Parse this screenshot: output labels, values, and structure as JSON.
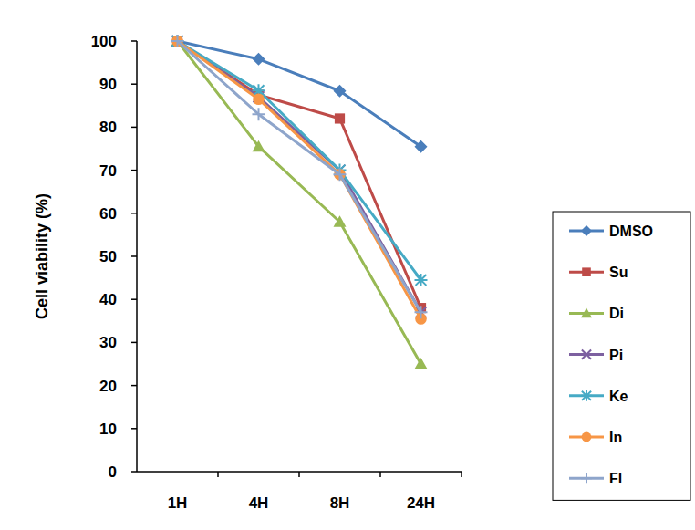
{
  "chart_data": {
    "type": "line",
    "y_label": "Cell viability (%)",
    "categories": [
      "1H",
      "4H",
      "8H",
      "24H"
    ],
    "ylim": [
      0,
      100
    ],
    "yticks": [
      0,
      10,
      20,
      30,
      40,
      50,
      60,
      70,
      80,
      90,
      100
    ],
    "grid": false,
    "legend": "right",
    "series": [
      {
        "name": "DMSO",
        "color": "#4a7ebb",
        "marker": "diamond",
        "values": [
          100,
          95.8,
          88.4,
          75.5
        ]
      },
      {
        "name": "Su",
        "color": "#be4b48",
        "marker": "square",
        "values": [
          100,
          87.5,
          82,
          38
        ]
      },
      {
        "name": "Di",
        "color": "#98b954",
        "marker": "triangle",
        "values": [
          100,
          75.5,
          58,
          25
        ]
      },
      {
        "name": "Pi",
        "color": "#7d60a0",
        "marker": "x",
        "values": [
          100,
          87,
          70,
          37
        ]
      },
      {
        "name": "Ke",
        "color": "#46aac5",
        "marker": "star",
        "values": [
          100,
          88.5,
          70,
          44.5
        ]
      },
      {
        "name": "In",
        "color": "#f79646",
        "marker": "circle",
        "values": [
          100,
          86.5,
          69,
          35.5
        ]
      },
      {
        "name": "Fl",
        "color": "#8ea5cb",
        "marker": "plus",
        "values": [
          100,
          83,
          69,
          37
        ]
      }
    ]
  }
}
